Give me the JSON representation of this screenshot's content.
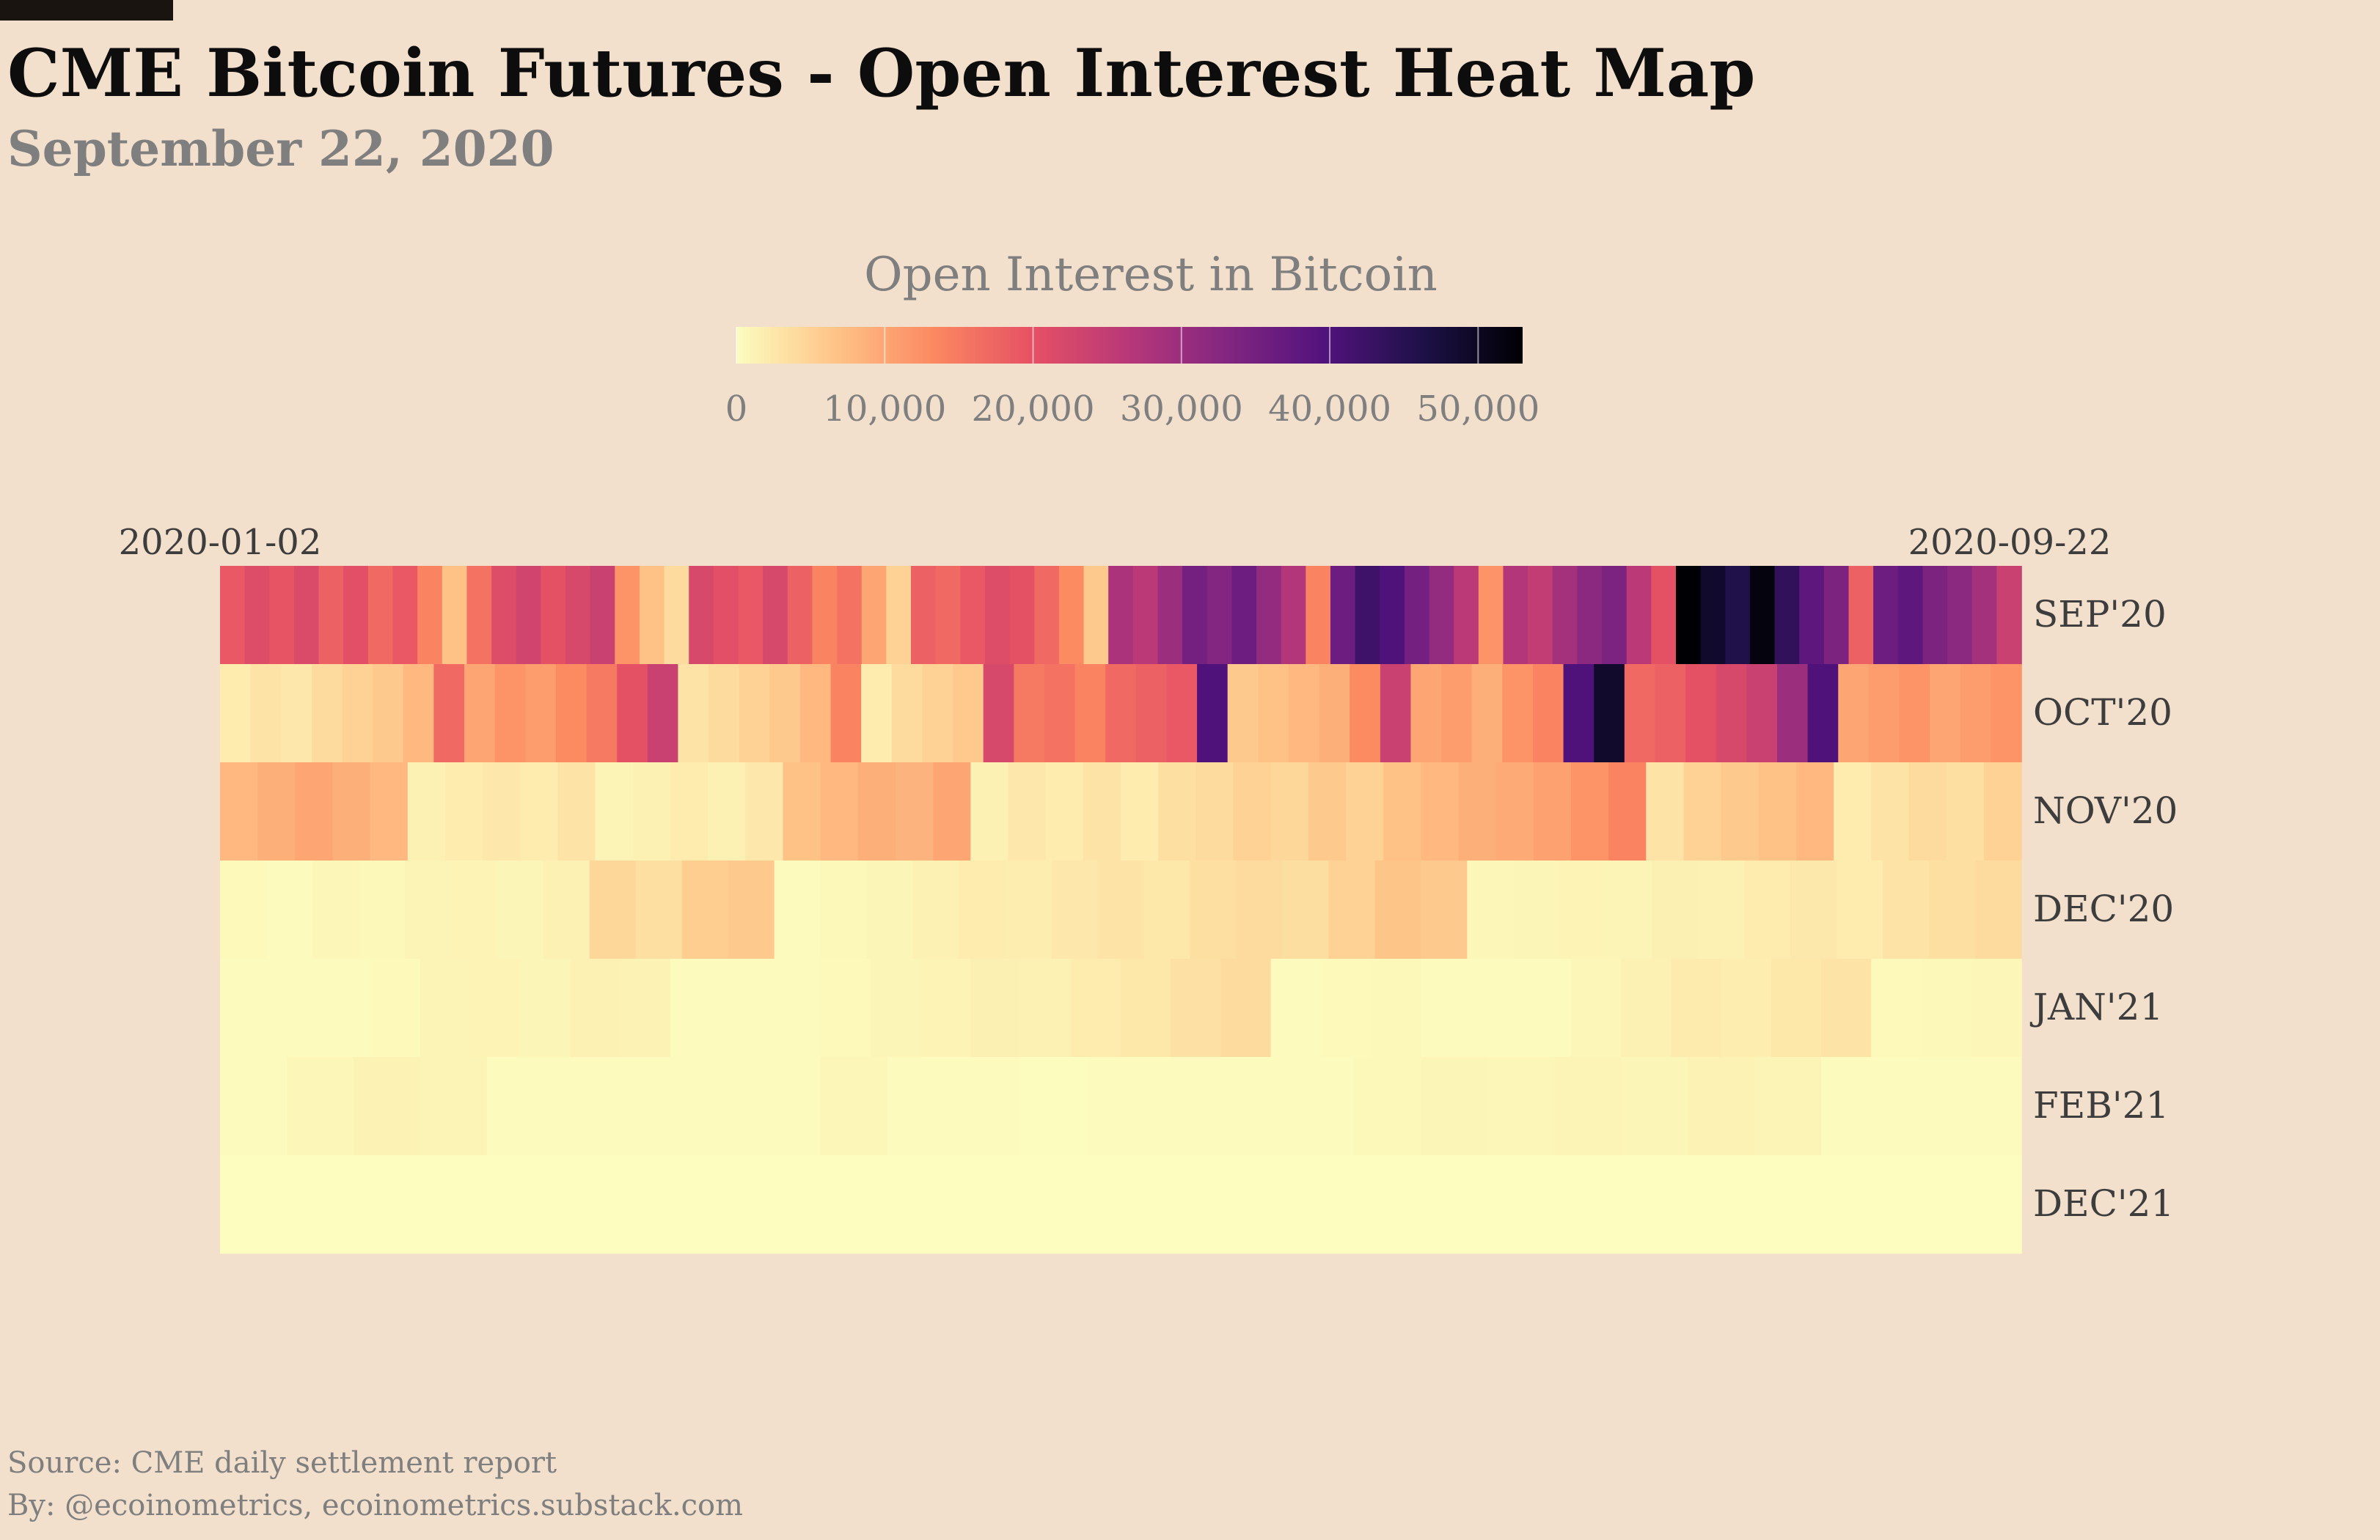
{
  "header": {
    "title": "CME Bitcoin Futures - Open Interest Heat Map",
    "subtitle": "September 22, 2020"
  },
  "colorbar": {
    "title": "Open Interest in Bitcoin",
    "tick_labels": [
      "0",
      "10,000",
      "20,000",
      "30,000",
      "40,000",
      "50,000"
    ],
    "tick_values": [
      0,
      10000,
      20000,
      30000,
      40000,
      50000
    ],
    "range": [
      0,
      53000
    ],
    "colormap": "magma_r",
    "stops": [
      "#fcfdbf",
      "#fec488",
      "#fc8961",
      "#e65164",
      "#b73779",
      "#822681",
      "#51127c",
      "#1d1147",
      "#000004"
    ]
  },
  "chart_data": {
    "type": "heatmap",
    "x_start_label": "2020-01-02",
    "x_end_label": "2020-09-22",
    "rows": [
      "SEP'20",
      "OCT'20",
      "NOV'20",
      "DEC'20",
      "JAN'21",
      "FEB'21",
      "DEC'21"
    ],
    "value_unit": "Bitcoin",
    "zlim": [
      0,
      53000
    ],
    "row_values": [
      [
        19000,
        21000,
        19500,
        21500,
        18000,
        20500,
        17000,
        19000,
        14000,
        7000,
        16000,
        21000,
        23000,
        20000,
        22000,
        24000,
        12000,
        7000,
        4000,
        22000,
        20500,
        19000,
        22000,
        18000,
        14000,
        16000,
        10000,
        5000,
        18000,
        17000,
        19000,
        21000,
        20000,
        17000,
        13000,
        6000,
        28000,
        26000,
        30000,
        35000,
        33000,
        36000,
        31000,
        27000,
        14000,
        36000,
        42000,
        40000,
        35000,
        31000,
        26000,
        12000,
        27000,
        25000,
        29000,
        32000,
        34000,
        26000,
        20000,
        53000,
        49000,
        46000,
        52000,
        44000,
        38000,
        34000,
        18000,
        36000,
        38000,
        34000,
        32000,
        29000,
        24000
      ],
      [
        2000,
        3000,
        2500,
        4000,
        5000,
        6000,
        8000,
        17000,
        10000,
        12000,
        11000,
        13000,
        15000,
        20000,
        24000,
        3000,
        4000,
        5000,
        6000,
        8000,
        14000,
        2000,
        4000,
        5000,
        6000,
        22000,
        15000,
        16000,
        14000,
        17000,
        18000,
        19000,
        40000,
        6000,
        7000,
        8000,
        9000,
        13000,
        24000,
        10000,
        11000,
        9000,
        12000,
        14000,
        40000,
        49000,
        17000,
        18000,
        20000,
        22000,
        24000,
        30000,
        40000,
        10000,
        11000,
        12000,
        10000,
        11000,
        12000
      ],
      [
        8000,
        9000,
        10000,
        9000,
        8000,
        1500,
        2000,
        2500,
        2000,
        3000,
        1000,
        1500,
        2000,
        1500,
        2500,
        7000,
        8000,
        9000,
        8500,
        10000,
        1500,
        2500,
        2000,
        3000,
        2000,
        3500,
        4000,
        5000,
        4500,
        6000,
        5000,
        7000,
        8000,
        9000,
        9500,
        10500,
        12000,
        14000,
        3000,
        5000,
        6000,
        7000,
        8000,
        2000,
        3000,
        4000,
        3500,
        5000
      ],
      [
        500,
        300,
        800,
        600,
        1000,
        1200,
        900,
        1500,
        4500,
        3500,
        5500,
        6000,
        300,
        600,
        900,
        1500,
        2000,
        1800,
        2500,
        3000,
        2600,
        3500,
        4000,
        3600,
        5000,
        6500,
        6000,
        700,
        900,
        1200,
        1000,
        1600,
        1400,
        2000,
        2400,
        2000,
        3000,
        3500,
        4000
      ],
      [
        200,
        300,
        400,
        500,
        1000,
        1200,
        900,
        1500,
        1300,
        300,
        200,
        400,
        500,
        900,
        1200,
        1600,
        1400,
        2000,
        2600,
        3200,
        4000,
        300,
        500,
        600,
        400,
        200,
        300,
        800,
        1400,
        2200,
        1800,
        2600,
        3000,
        500,
        600,
        700
      ],
      [
        300,
        800,
        1300,
        1100,
        400,
        200,
        300,
        250,
        400,
        800,
        300,
        200,
        150,
        200,
        250,
        300,
        400,
        600,
        900,
        700,
        1100,
        900,
        1300,
        1000,
        200,
        250,
        200
      ],
      [
        0,
        0,
        0,
        0,
        0,
        0,
        0,
        0,
        0,
        0,
        0,
        0,
        0,
        0,
        0,
        0,
        0,
        0,
        0,
        0
      ]
    ]
  },
  "footer": {
    "source": "Source: CME daily settlement report",
    "byline": "By: @ecoinometrics, ecoinometrics.substack.com"
  }
}
